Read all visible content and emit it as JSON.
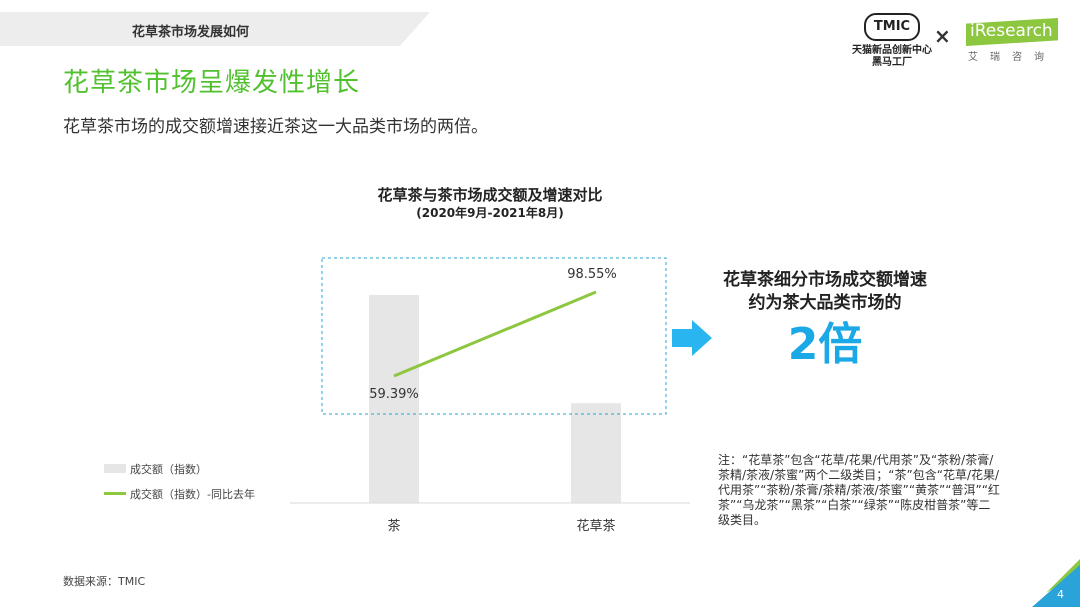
{
  "header": {
    "section_tab": "花草茶市场发展如何",
    "title": "花草茶市场呈爆发性增长",
    "subtitle": "花草茶市场的成交额增速接近茶这一大品类市场的两倍。"
  },
  "logos": {
    "tmic_mark": "TMIC",
    "tmic_line1": "天猫新品创新中心",
    "tmic_line2": "黑马工厂",
    "separator": "×",
    "iresearch_name": "iResearch",
    "iresearch_cn": "艾瑞咨询"
  },
  "chart_data": {
    "type": "bar",
    "title": "花草茶与茶市场成交额及增速对比",
    "subtitle": "(2020年9月-2021年8月)",
    "categories": [
      "茶",
      "花草茶"
    ],
    "series": [
      {
        "name": "成交额（指数）",
        "type": "bar",
        "values": [
          100,
          48
        ],
        "color": "#e6e6e6"
      },
      {
        "name": "成交额（指数）-同比去年",
        "type": "line",
        "values": [
          59.39,
          98.55
        ],
        "value_labels": [
          "59.39%",
          "98.55%"
        ],
        "color": "#8dc63f"
      }
    ],
    "legend_position": "left",
    "grid": false
  },
  "callout": {
    "line1": "花草茶细分市场成交额增速",
    "line2": "约为茶大品类市场的",
    "big": "2倍",
    "arrow_color": "#29b6f0"
  },
  "note": {
    "text": "注：“花草茶”包含“花草/花果/代用茶”及“茶粉/茶膏/茶精/茶液/茶蜜”两个二级类目；“茶”包含“花草/花果/代用茶”“茶粉/茶膏/茶精/茶液/茶蜜”“黄茶”“普洱”“红茶”“乌龙茶”“黑茶”“白茶”“绿茶”“陈皮柑普茶”等二级类目。"
  },
  "footer": {
    "source": "数据来源：TMIC",
    "page": "4"
  },
  "colors": {
    "title_green": "#52c130",
    "accent_blue": "#1aa8e6",
    "line_green": "#8dc63f",
    "bar_gray": "#e6e6e6"
  }
}
